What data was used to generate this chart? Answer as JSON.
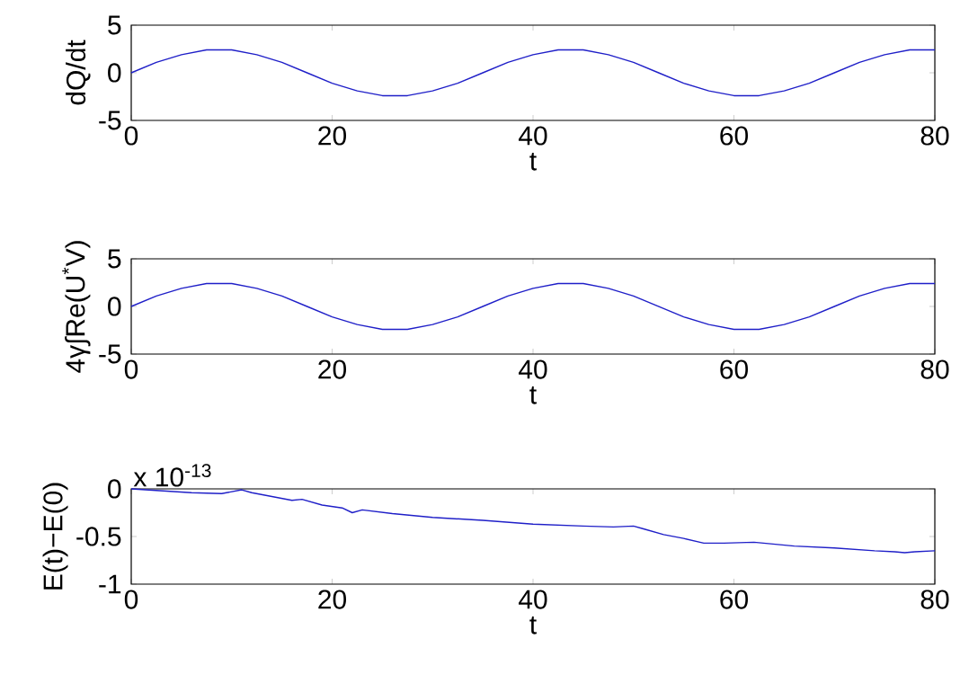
{
  "chart_data": [
    {
      "type": "line",
      "xlabel": "t",
      "ylabel": "dQ/dt",
      "xlim": [
        0,
        80
      ],
      "ylim": [
        -5,
        5
      ],
      "xticks": [
        0,
        20,
        40,
        60,
        80
      ],
      "yticks": [
        -5,
        0,
        5
      ],
      "series": [
        {
          "color": "#1f1fc8",
          "x": [
            0,
            2.5,
            5,
            7.5,
            10,
            12.5,
            15,
            17.5,
            20,
            22.5,
            25,
            27.5,
            30,
            32.5,
            35,
            37.5,
            40,
            42.5,
            45,
            47.5,
            50,
            52.5,
            55,
            57.5,
            60,
            62.5,
            65,
            67.5,
            70,
            72.5,
            75,
            77.5,
            80
          ],
          "values": [
            0,
            1.1,
            1.9,
            2.4,
            2.4,
            1.9,
            1.1,
            0,
            -1.1,
            -1.9,
            -2.4,
            -2.4,
            -1.9,
            -1.1,
            0,
            1.1,
            1.9,
            2.4,
            2.4,
            1.9,
            1.1,
            0,
            -1.1,
            -1.9,
            -2.4,
            -2.4,
            -1.9,
            -1.1,
            0,
            1.1,
            1.9,
            2.4,
            2.4
          ]
        }
      ]
    },
    {
      "type": "line",
      "xlabel": "t",
      "ylabel": "4γ∫Re(U$^{*}$V)",
      "xlim": [
        0,
        80
      ],
      "ylim": [
        -5,
        5
      ],
      "xticks": [
        0,
        20,
        40,
        60,
        80
      ],
      "yticks": [
        -5,
        0,
        5
      ],
      "series": [
        {
          "color": "#1f1fc8",
          "x": [
            0,
            2.5,
            5,
            7.5,
            10,
            12.5,
            15,
            17.5,
            20,
            22.5,
            25,
            27.5,
            30,
            32.5,
            35,
            37.5,
            40,
            42.5,
            45,
            47.5,
            50,
            52.5,
            55,
            57.5,
            60,
            62.5,
            65,
            67.5,
            70,
            72.5,
            75,
            77.5,
            80
          ],
          "values": [
            0,
            1.1,
            1.9,
            2.4,
            2.4,
            1.9,
            1.1,
            0,
            -1.1,
            -1.9,
            -2.4,
            -2.4,
            -1.9,
            -1.1,
            0,
            1.1,
            1.9,
            2.4,
            2.4,
            1.9,
            1.1,
            0,
            -1.1,
            -1.9,
            -2.4,
            -2.4,
            -1.9,
            -1.1,
            0,
            1.1,
            1.9,
            2.4,
            2.4
          ]
        }
      ]
    },
    {
      "type": "line",
      "xlabel": "t",
      "ylabel": "E(t)−E(0)",
      "annotations": [
        "x 10$^{-13}$"
      ],
      "xlim": [
        0,
        80
      ],
      "ylim": [
        -1,
        0
      ],
      "xticks": [
        0,
        20,
        40,
        60,
        80
      ],
      "yticks": [
        -1,
        -0.5,
        0
      ],
      "series": [
        {
          "color": "#1f1fc8",
          "x": [
            0,
            3,
            6,
            9,
            11,
            12,
            14,
            16,
            17,
            19,
            21,
            22,
            23,
            26,
            30,
            35,
            40,
            45,
            48,
            50,
            51,
            53,
            55,
            57,
            59,
            62,
            63,
            66,
            70,
            74,
            76,
            77,
            78,
            80
          ],
          "values": [
            0,
            -0.02,
            -0.04,
            -0.05,
            -0.01,
            -0.04,
            -0.08,
            -0.12,
            -0.11,
            -0.17,
            -0.2,
            -0.25,
            -0.22,
            -0.26,
            -0.3,
            -0.33,
            -0.37,
            -0.39,
            -0.4,
            -0.39,
            -0.42,
            -0.48,
            -0.52,
            -0.57,
            -0.57,
            -0.56,
            -0.57,
            -0.6,
            -0.62,
            -0.65,
            -0.66,
            -0.67,
            -0.66,
            -0.65
          ]
        }
      ]
    }
  ]
}
